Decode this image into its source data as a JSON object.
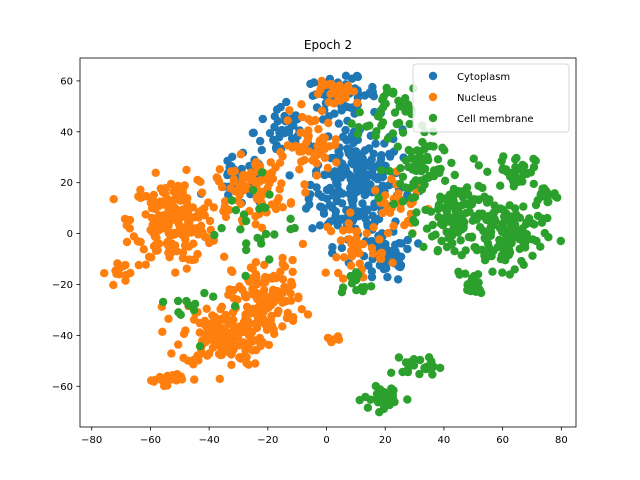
{
  "chart_data": {
    "type": "scatter",
    "title": "Epoch 2",
    "xlabel": "",
    "ylabel": "",
    "xlim": [
      -84,
      85
    ],
    "ylim": [
      -76,
      69
    ],
    "xticks": [
      -80,
      -60,
      -40,
      -20,
      0,
      20,
      40,
      60,
      80
    ],
    "yticks": [
      -60,
      -40,
      -20,
      0,
      20,
      40,
      60
    ],
    "grid": false,
    "legend_position": "top-right",
    "series": [
      {
        "name": "Cytoplasm",
        "color": "#1f77b4",
        "clusters": [
          {
            "center": [
              10,
              20
            ],
            "spread": [
              13,
              20
            ],
            "count": 260
          },
          {
            "center": [
              5,
              55
            ],
            "spread": [
              10,
              5
            ],
            "count": 60
          },
          {
            "center": [
              -15,
              40
            ],
            "spread": [
              8,
              10
            ],
            "count": 40
          },
          {
            "center": [
              20,
              -10
            ],
            "spread": [
              8,
              8
            ],
            "count": 50
          },
          {
            "center": [
              -30,
              20
            ],
            "spread": [
              8,
              8
            ],
            "count": 30
          }
        ]
      },
      {
        "name": "Nucleus",
        "color": "#ff7f0e",
        "clusters": [
          {
            "center": [
              -52,
              5
            ],
            "spread": [
              12,
              14
            ],
            "count": 200
          },
          {
            "center": [
              -35,
              -40
            ],
            "spread": [
              12,
              10
            ],
            "count": 160
          },
          {
            "center": [
              -20,
              -25
            ],
            "spread": [
              10,
              12
            ],
            "count": 110
          },
          {
            "center": [
              -25,
              18
            ],
            "spread": [
              10,
              10
            ],
            "count": 80
          },
          {
            "center": [
              -5,
              35
            ],
            "spread": [
              8,
              10
            ],
            "count": 50
          },
          {
            "center": [
              5,
              55
            ],
            "spread": [
              8,
              4
            ],
            "count": 30
          },
          {
            "center": [
              10,
              -5
            ],
            "spread": [
              8,
              10
            ],
            "count": 40
          },
          {
            "center": [
              25,
              10
            ],
            "spread": [
              8,
              10
            ],
            "count": 30
          },
          {
            "center": [
              -70,
              -15
            ],
            "spread": [
              4,
              4
            ],
            "count": 15
          },
          {
            "center": [
              2,
              -42
            ],
            "spread": [
              2,
              2
            ],
            "count": 6
          },
          {
            "center": [
              -55,
              -57
            ],
            "spread": [
              6,
              2
            ],
            "count": 20
          }
        ]
      },
      {
        "name": "Cell membrane",
        "color": "#2ca02c",
        "clusters": [
          {
            "center": [
              45,
              5
            ],
            "spread": [
              10,
              14
            ],
            "count": 120
          },
          {
            "center": [
              62,
              0
            ],
            "spread": [
              10,
              12
            ],
            "count": 120
          },
          {
            "center": [
              65,
              25
            ],
            "spread": [
              5,
              5
            ],
            "count": 35
          },
          {
            "center": [
              75,
              15
            ],
            "spread": [
              4,
              3
            ],
            "count": 15
          },
          {
            "center": [
              30,
              25
            ],
            "spread": [
              8,
              12
            ],
            "count": 60
          },
          {
            "center": [
              20,
              45
            ],
            "spread": [
              8,
              10
            ],
            "count": 40
          },
          {
            "center": [
              50,
              -20
            ],
            "spread": [
              3,
              4
            ],
            "count": 15
          },
          {
            "center": [
              20,
              -65
            ],
            "spread": [
              6,
              4
            ],
            "count": 35
          },
          {
            "center": [
              32,
              -52
            ],
            "spread": [
              5,
              3
            ],
            "count": 25
          },
          {
            "center": [
              10,
              -20
            ],
            "spread": [
              5,
              5
            ],
            "count": 12
          },
          {
            "center": [
              -25,
              5
            ],
            "spread": [
              12,
              15
            ],
            "count": 25
          },
          {
            "center": [
              -40,
              -30
            ],
            "spread": [
              10,
              10
            ],
            "count": 12
          }
        ]
      }
    ]
  }
}
